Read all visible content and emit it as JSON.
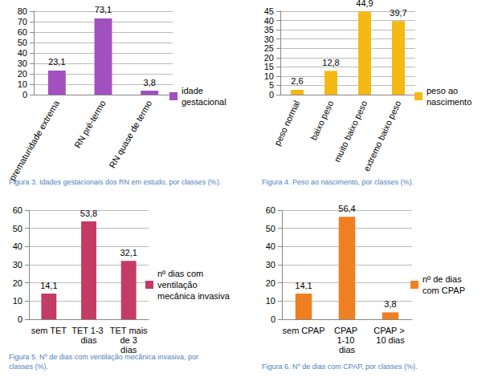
{
  "chart_data": [
    {
      "type": "bar",
      "title": "Figura 3. Idades gestacionais dos RN em estudo, por classes (%).",
      "categories": [
        "prematuridade extrema",
        "RN pré-termo",
        "RN quase de termo"
      ],
      "series": [
        {
          "name": "idade gestacional",
          "color": "#a24fc0",
          "values": [
            23.1,
            73.1,
            3.8
          ],
          "value_labels": [
            "23,1",
            "73,1",
            "3,8"
          ]
        }
      ],
      "ylim": [
        0,
        80
      ],
      "yticks": [
        0,
        10,
        20,
        30,
        40,
        50,
        60,
        70,
        80
      ],
      "grid": true,
      "legend": "right",
      "data_labels": true
    },
    {
      "type": "bar",
      "title": "Figura 4. Peso ao nascimento, por classes (%).",
      "categories": [
        "peso normal",
        "baixo peso",
        "muito baixo peso",
        "extremo baixo peso"
      ],
      "series": [
        {
          "name": "peso ao nascimento",
          "color": "#f5b915",
          "values": [
            2.6,
            12.8,
            44.9,
            39.7
          ],
          "value_labels": [
            "2,6",
            "12,8",
            "44,9",
            "39,7"
          ]
        }
      ],
      "ylim": [
        0,
        45
      ],
      "yticks": [
        0,
        5,
        10,
        15,
        20,
        25,
        30,
        35,
        40,
        45
      ],
      "grid": true,
      "legend": "right",
      "data_labels": true
    },
    {
      "type": "bar",
      "title": "Figura 5. Nº de dias com ventilação mecânica invasiva, por classes (%).",
      "categories": [
        "sem TET",
        "TET 1-3 dias",
        "TET mais de 3 dias"
      ],
      "series": [
        {
          "name": "nº dias com ventilação mecânica invasiva",
          "color": "#c43b66",
          "values": [
            14.1,
            53.8,
            32.1
          ],
          "value_labels": [
            "14,1",
            "53,8",
            "32,1"
          ]
        }
      ],
      "ylim": [
        0,
        60
      ],
      "yticks": [
        0,
        10,
        20,
        30,
        40,
        50,
        60
      ],
      "grid": true,
      "legend": "right",
      "data_labels": true
    },
    {
      "type": "bar",
      "title": "Figura 6. Nº de dias com CPAP, por classes (%).",
      "categories": [
        "sem CPAP",
        "CPAP 1-10 dias",
        "CPAP > 10 dias"
      ],
      "series": [
        {
          "name": "nº de dias com CPAP",
          "color": "#f07f22",
          "values": [
            14.1,
            56.4,
            3.8
          ],
          "value_labels": [
            "14,1",
            "56,4",
            "3,8"
          ]
        }
      ],
      "ylim": [
        0,
        60
      ],
      "yticks": [
        0,
        10,
        20,
        30,
        40,
        50,
        60
      ],
      "grid": true,
      "legend": "right",
      "data_labels": true
    }
  ]
}
